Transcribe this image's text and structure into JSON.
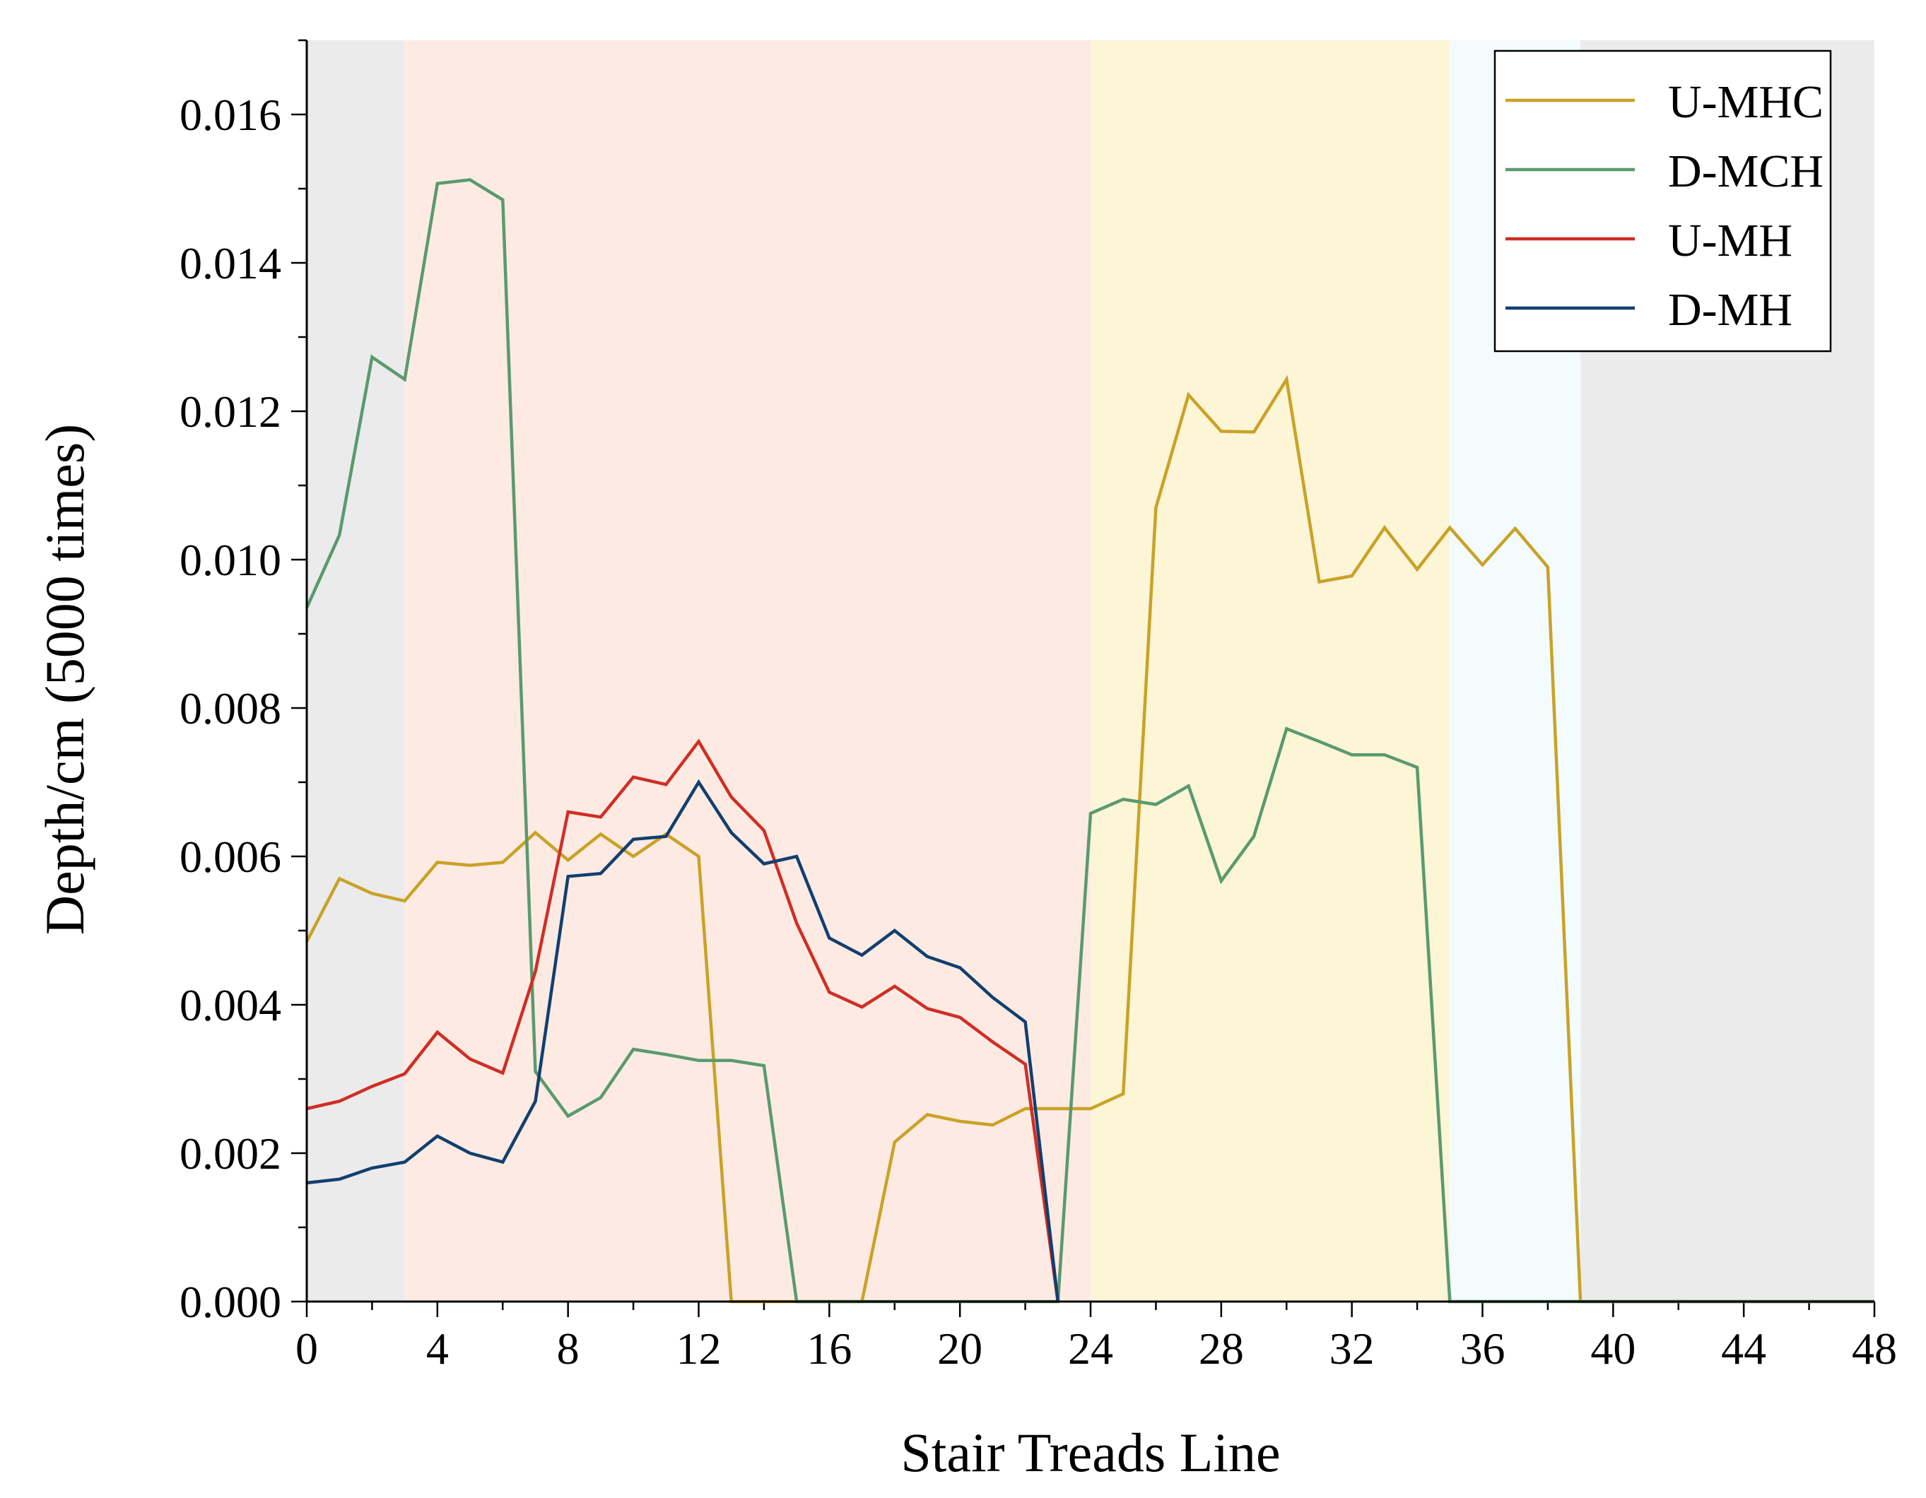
{
  "chart_data": {
    "type": "line",
    "xlabel": "Stair Treads Line",
    "ylabel": "Depth/cm (5000 times)",
    "xlim": [
      0,
      48
    ],
    "ylim": [
      0,
      0.017
    ],
    "xticks": [
      "0",
      "4",
      "8",
      "12",
      "16",
      "20",
      "24",
      "28",
      "32",
      "36",
      "40",
      "44",
      "48"
    ],
    "yticks": [
      "0.000",
      "0.002",
      "0.004",
      "0.006",
      "0.008",
      "0.010",
      "0.012",
      "0.014",
      "0.016"
    ],
    "xtick_values": [
      0,
      4,
      8,
      12,
      16,
      20,
      24,
      28,
      32,
      36,
      40,
      44,
      48
    ],
    "ytick_values": [
      0,
      0.002,
      0.004,
      0.006,
      0.008,
      0.01,
      0.012,
      0.014,
      0.016
    ],
    "grid": false,
    "legend_position": "top-right",
    "background_bands": [
      {
        "from": 0,
        "to": 3,
        "color": "#ebebeb"
      },
      {
        "from": 3,
        "to": 24,
        "color": "#fdebe3"
      },
      {
        "from": 24,
        "to": 35,
        "color": "#fcf5d6"
      },
      {
        "from": 35,
        "to": 39,
        "color": "#f3fbfd"
      },
      {
        "from": 39,
        "to": 48,
        "color": "#ebebeb"
      }
    ],
    "series": [
      {
        "name": "U-MHC",
        "color": "#c9a227",
        "x": [
          0,
          1,
          2,
          3,
          4,
          5,
          6,
          7,
          8,
          9,
          10,
          11,
          12,
          13,
          14,
          15,
          16,
          17,
          18,
          19,
          20,
          21,
          22,
          23,
          24,
          25,
          26,
          27,
          28,
          29,
          30,
          31,
          32,
          33,
          34,
          35,
          36,
          37,
          38,
          39,
          40,
          41,
          42,
          43,
          44,
          45,
          46,
          47,
          48
        ],
        "y": [
          0.00485,
          0.0057,
          0.0055,
          0.0054,
          0.00592,
          0.00588,
          0.00592,
          0.00632,
          0.00595,
          0.0063,
          0.006,
          0.0063,
          0.006,
          0.0,
          0.0,
          0.0,
          0.0,
          0.0,
          0.00215,
          0.00252,
          0.00243,
          0.00238,
          0.0026,
          0.0026,
          0.0026,
          0.0028,
          0.0107,
          0.01222,
          0.01173,
          0.01172,
          0.01243,
          0.0097,
          0.00978,
          0.01043,
          0.00987,
          0.01043,
          0.00993,
          0.01042,
          0.0099,
          0.0,
          0.0,
          0.0,
          0.0,
          0.0,
          0.0,
          0.0,
          0.0,
          0.0,
          0.0
        ]
      },
      {
        "name": "D-MCH",
        "color": "#5a9a6e",
        "x": [
          0,
          1,
          2,
          3,
          4,
          5,
          6,
          7,
          8,
          9,
          10,
          11,
          12,
          13,
          14,
          15,
          16,
          17,
          18,
          19,
          20,
          21,
          22,
          23,
          24,
          25,
          26,
          27,
          28,
          29,
          30,
          31,
          32,
          33,
          34,
          35,
          36,
          37,
          38,
          39,
          40,
          41,
          42,
          43,
          44,
          45,
          46,
          47,
          48
        ],
        "y": [
          0.00935,
          0.01033,
          0.01273,
          0.01243,
          0.01507,
          0.01512,
          0.01485,
          0.0031,
          0.0025,
          0.00275,
          0.0034,
          0.00333,
          0.00325,
          0.00325,
          0.00318,
          0.0,
          0.0,
          0.0,
          0.0,
          0.0,
          0.0,
          0.0,
          0.0,
          0.0,
          0.00658,
          0.00677,
          0.0067,
          0.00695,
          0.00567,
          0.00627,
          0.00772,
          0.00755,
          0.00737,
          0.00737,
          0.0072,
          0.0,
          0.0,
          0.0,
          0.0,
          0.0,
          0.0,
          0.0,
          0.0,
          0.0,
          0.0,
          0.0,
          0.0,
          0.0,
          0.0
        ]
      },
      {
        "name": "U-MH",
        "color": "#d02e26",
        "x": [
          0,
          1,
          2,
          3,
          4,
          5,
          6,
          7,
          8,
          9,
          10,
          11,
          12,
          13,
          14,
          15,
          16,
          17,
          18,
          19,
          20,
          21,
          22,
          23
        ],
        "y": [
          0.0026,
          0.0027,
          0.0029,
          0.00307,
          0.00363,
          0.00327,
          0.00308,
          0.00445,
          0.0066,
          0.00653,
          0.00707,
          0.00697,
          0.00755,
          0.0068,
          0.00635,
          0.0051,
          0.00417,
          0.00397,
          0.00425,
          0.00395,
          0.00383,
          0.0035,
          0.0032,
          0.0
        ]
      },
      {
        "name": "D-MH",
        "color": "#123f6e",
        "x": [
          0,
          1,
          2,
          3,
          4,
          5,
          6,
          7,
          8,
          9,
          10,
          11,
          12,
          13,
          14,
          15,
          16,
          17,
          18,
          19,
          20,
          21,
          22,
          23
        ],
        "y": [
          0.0016,
          0.00165,
          0.0018,
          0.00188,
          0.00223,
          0.002,
          0.00188,
          0.0027,
          0.00573,
          0.00577,
          0.00623,
          0.00627,
          0.007,
          0.00632,
          0.0059,
          0.006,
          0.0049,
          0.00467,
          0.005,
          0.00465,
          0.0045,
          0.0041,
          0.00377,
          0.0
        ]
      }
    ]
  }
}
